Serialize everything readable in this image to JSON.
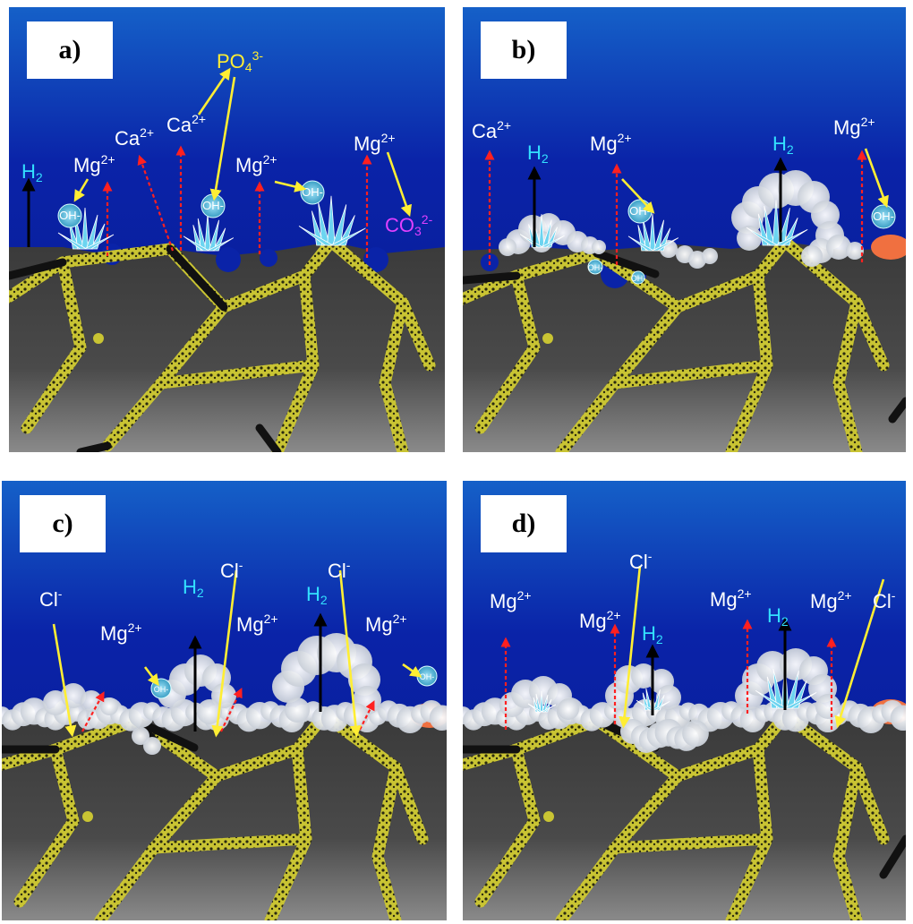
{
  "panels": [
    {
      "tag": "a)",
      "labels": [
        {
          "id": "h2",
          "base": "H",
          "sub": "2",
          "sup": "",
          "color": "cyan"
        },
        {
          "id": "mg1",
          "base": "Mg",
          "sub": "",
          "sup": "2+",
          "color": "white"
        },
        {
          "id": "ca1",
          "base": "Ca",
          "sub": "",
          "sup": "2+",
          "color": "white"
        },
        {
          "id": "ca2",
          "base": "Ca",
          "sub": "",
          "sup": "2+",
          "color": "white"
        },
        {
          "id": "po4",
          "base": "PO",
          "sub": "4",
          "sup": "3-",
          "color": "yellow"
        },
        {
          "id": "mg2",
          "base": "Mg",
          "sub": "",
          "sup": "2+",
          "color": "white"
        },
        {
          "id": "mg3",
          "base": "Mg",
          "sub": "",
          "sup": "2+",
          "color": "white"
        },
        {
          "id": "co3",
          "base": "CO",
          "sub": "3",
          "sup": "2-",
          "color": "magenta"
        }
      ],
      "oh": [
        "OH-",
        "OH-",
        "OH-"
      ]
    },
    {
      "tag": "b)",
      "labels": [
        {
          "id": "ca1",
          "base": "Ca",
          "sub": "",
          "sup": "2+",
          "color": "white"
        },
        {
          "id": "h2a",
          "base": "H",
          "sub": "2",
          "sup": "",
          "color": "cyan"
        },
        {
          "id": "mg1",
          "base": "Mg",
          "sub": "",
          "sup": "2+",
          "color": "white"
        },
        {
          "id": "h2b",
          "base": "H",
          "sub": "2",
          "sup": "",
          "color": "cyan"
        },
        {
          "id": "mg2",
          "base": "Mg",
          "sub": "",
          "sup": "2+",
          "color": "white"
        }
      ],
      "oh": [
        "OH-",
        "OH-",
        "OH-",
        "OH-"
      ]
    },
    {
      "tag": "c)",
      "labels": [
        {
          "id": "cl1",
          "base": "Cl",
          "sub": "",
          "sup": "-",
          "color": "white"
        },
        {
          "id": "mg1",
          "base": "Mg",
          "sub": "",
          "sup": "2+",
          "color": "white"
        },
        {
          "id": "cl2",
          "base": "Cl",
          "sub": "",
          "sup": "-",
          "color": "white"
        },
        {
          "id": "h2a",
          "base": "H",
          "sub": "2",
          "sup": "",
          "color": "cyan"
        },
        {
          "id": "mg2",
          "base": "Mg",
          "sub": "",
          "sup": "2+",
          "color": "white"
        },
        {
          "id": "cl3",
          "base": "Cl",
          "sub": "",
          "sup": "-",
          "color": "white"
        },
        {
          "id": "h2b",
          "base": "H",
          "sub": "2",
          "sup": "",
          "color": "cyan"
        },
        {
          "id": "mg3",
          "base": "Mg",
          "sub": "",
          "sup": "2+",
          "color": "white"
        }
      ],
      "oh": [
        "OH-",
        "OH-"
      ]
    },
    {
      "tag": "d)",
      "labels": [
        {
          "id": "mg1",
          "base": "Mg",
          "sub": "",
          "sup": "2+",
          "color": "white"
        },
        {
          "id": "cl1",
          "base": "Cl",
          "sub": "",
          "sup": "-",
          "color": "white"
        },
        {
          "id": "mg2",
          "base": "Mg",
          "sub": "",
          "sup": "2+",
          "color": "white"
        },
        {
          "id": "h2a",
          "base": "H",
          "sub": "2",
          "sup": "",
          "color": "cyan"
        },
        {
          "id": "mg3",
          "base": "Mg",
          "sub": "",
          "sup": "2+",
          "color": "white"
        },
        {
          "id": "h2b",
          "base": "H",
          "sub": "2",
          "sup": "",
          "color": "cyan"
        },
        {
          "id": "mg4",
          "base": "Mg",
          "sub": "",
          "sup": "2+",
          "color": "white"
        },
        {
          "id": "cl2",
          "base": "Cl",
          "sub": "",
          "sup": "-",
          "color": "white"
        }
      ],
      "oh": []
    }
  ],
  "colors": {
    "electrolyte": "#0a23a8",
    "metal": "#4a4a4a",
    "boundary": "#c9c433",
    "crystal": "#6cd4f0",
    "film": "#f0f3f6",
    "hydroxide": "#3a9ec4",
    "arrow_ion": "#ff2020",
    "arrow_h2": "#000000",
    "arrow_reactant": "#ffee33"
  }
}
